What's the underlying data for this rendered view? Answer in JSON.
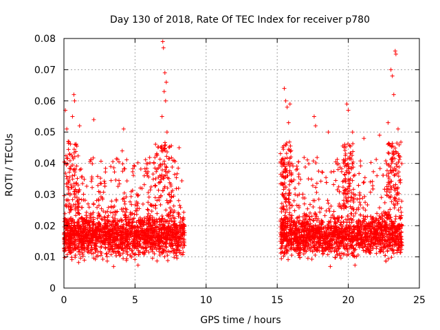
{
  "chart_data": {
    "type": "scatter",
    "title": "Day 130 of 2018, Rate Of TEC Index for receiver p780",
    "xlabel": "GPS time / hours",
    "ylabel": "ROTI / TECUs",
    "xlim": [
      0,
      25
    ],
    "ylim": [
      0,
      0.08
    ],
    "x_ticks": [
      "0",
      "5",
      "10",
      "15",
      "20",
      "25"
    ],
    "y_ticks": [
      "0",
      "0.01",
      "0.02",
      "0.03",
      "0.04",
      "0.05",
      "0.06",
      "0.07",
      "0.08"
    ],
    "grid": true,
    "marker": "+",
    "series": [
      {
        "name": "ROTI",
        "color": "#ff0000",
        "segments": [
          {
            "x_start": 0.0,
            "x_end": 8.5,
            "typical_range": [
              0.005,
              0.035
            ]
          },
          {
            "x_start": 15.2,
            "x_end": 23.8,
            "typical_range": [
              0.005,
              0.035
            ]
          }
        ],
        "peaks": [
          [
            0.1,
            0.057
          ],
          [
            0.2,
            0.051
          ],
          [
            0.3,
            0.047
          ],
          [
            0.6,
            0.055
          ],
          [
            0.7,
            0.062
          ],
          [
            0.75,
            0.06
          ],
          [
            1.1,
            0.052
          ],
          [
            2.1,
            0.054
          ],
          [
            4.2,
            0.051
          ],
          [
            4.1,
            0.044
          ],
          [
            6.95,
            0.079
          ],
          [
            7.0,
            0.077
          ],
          [
            7.1,
            0.069
          ],
          [
            7.2,
            0.066
          ],
          [
            7.05,
            0.063
          ],
          [
            7.15,
            0.06
          ],
          [
            6.9,
            0.055
          ],
          [
            7.25,
            0.05
          ],
          [
            8.1,
            0.045
          ],
          [
            15.5,
            0.064
          ],
          [
            15.6,
            0.06
          ],
          [
            15.7,
            0.058
          ],
          [
            15.9,
            0.059
          ],
          [
            15.8,
            0.053
          ],
          [
            17.6,
            0.055
          ],
          [
            17.7,
            0.052
          ],
          [
            18.6,
            0.05
          ],
          [
            19.9,
            0.059
          ],
          [
            20.0,
            0.057
          ],
          [
            20.3,
            0.05
          ],
          [
            21.1,
            0.048
          ],
          [
            22.2,
            0.049
          ],
          [
            23.0,
            0.07
          ],
          [
            23.1,
            0.068
          ],
          [
            23.3,
            0.076
          ],
          [
            23.35,
            0.075
          ],
          [
            23.2,
            0.062
          ],
          [
            23.5,
            0.051
          ],
          [
            22.8,
            0.053
          ]
        ]
      }
    ]
  }
}
